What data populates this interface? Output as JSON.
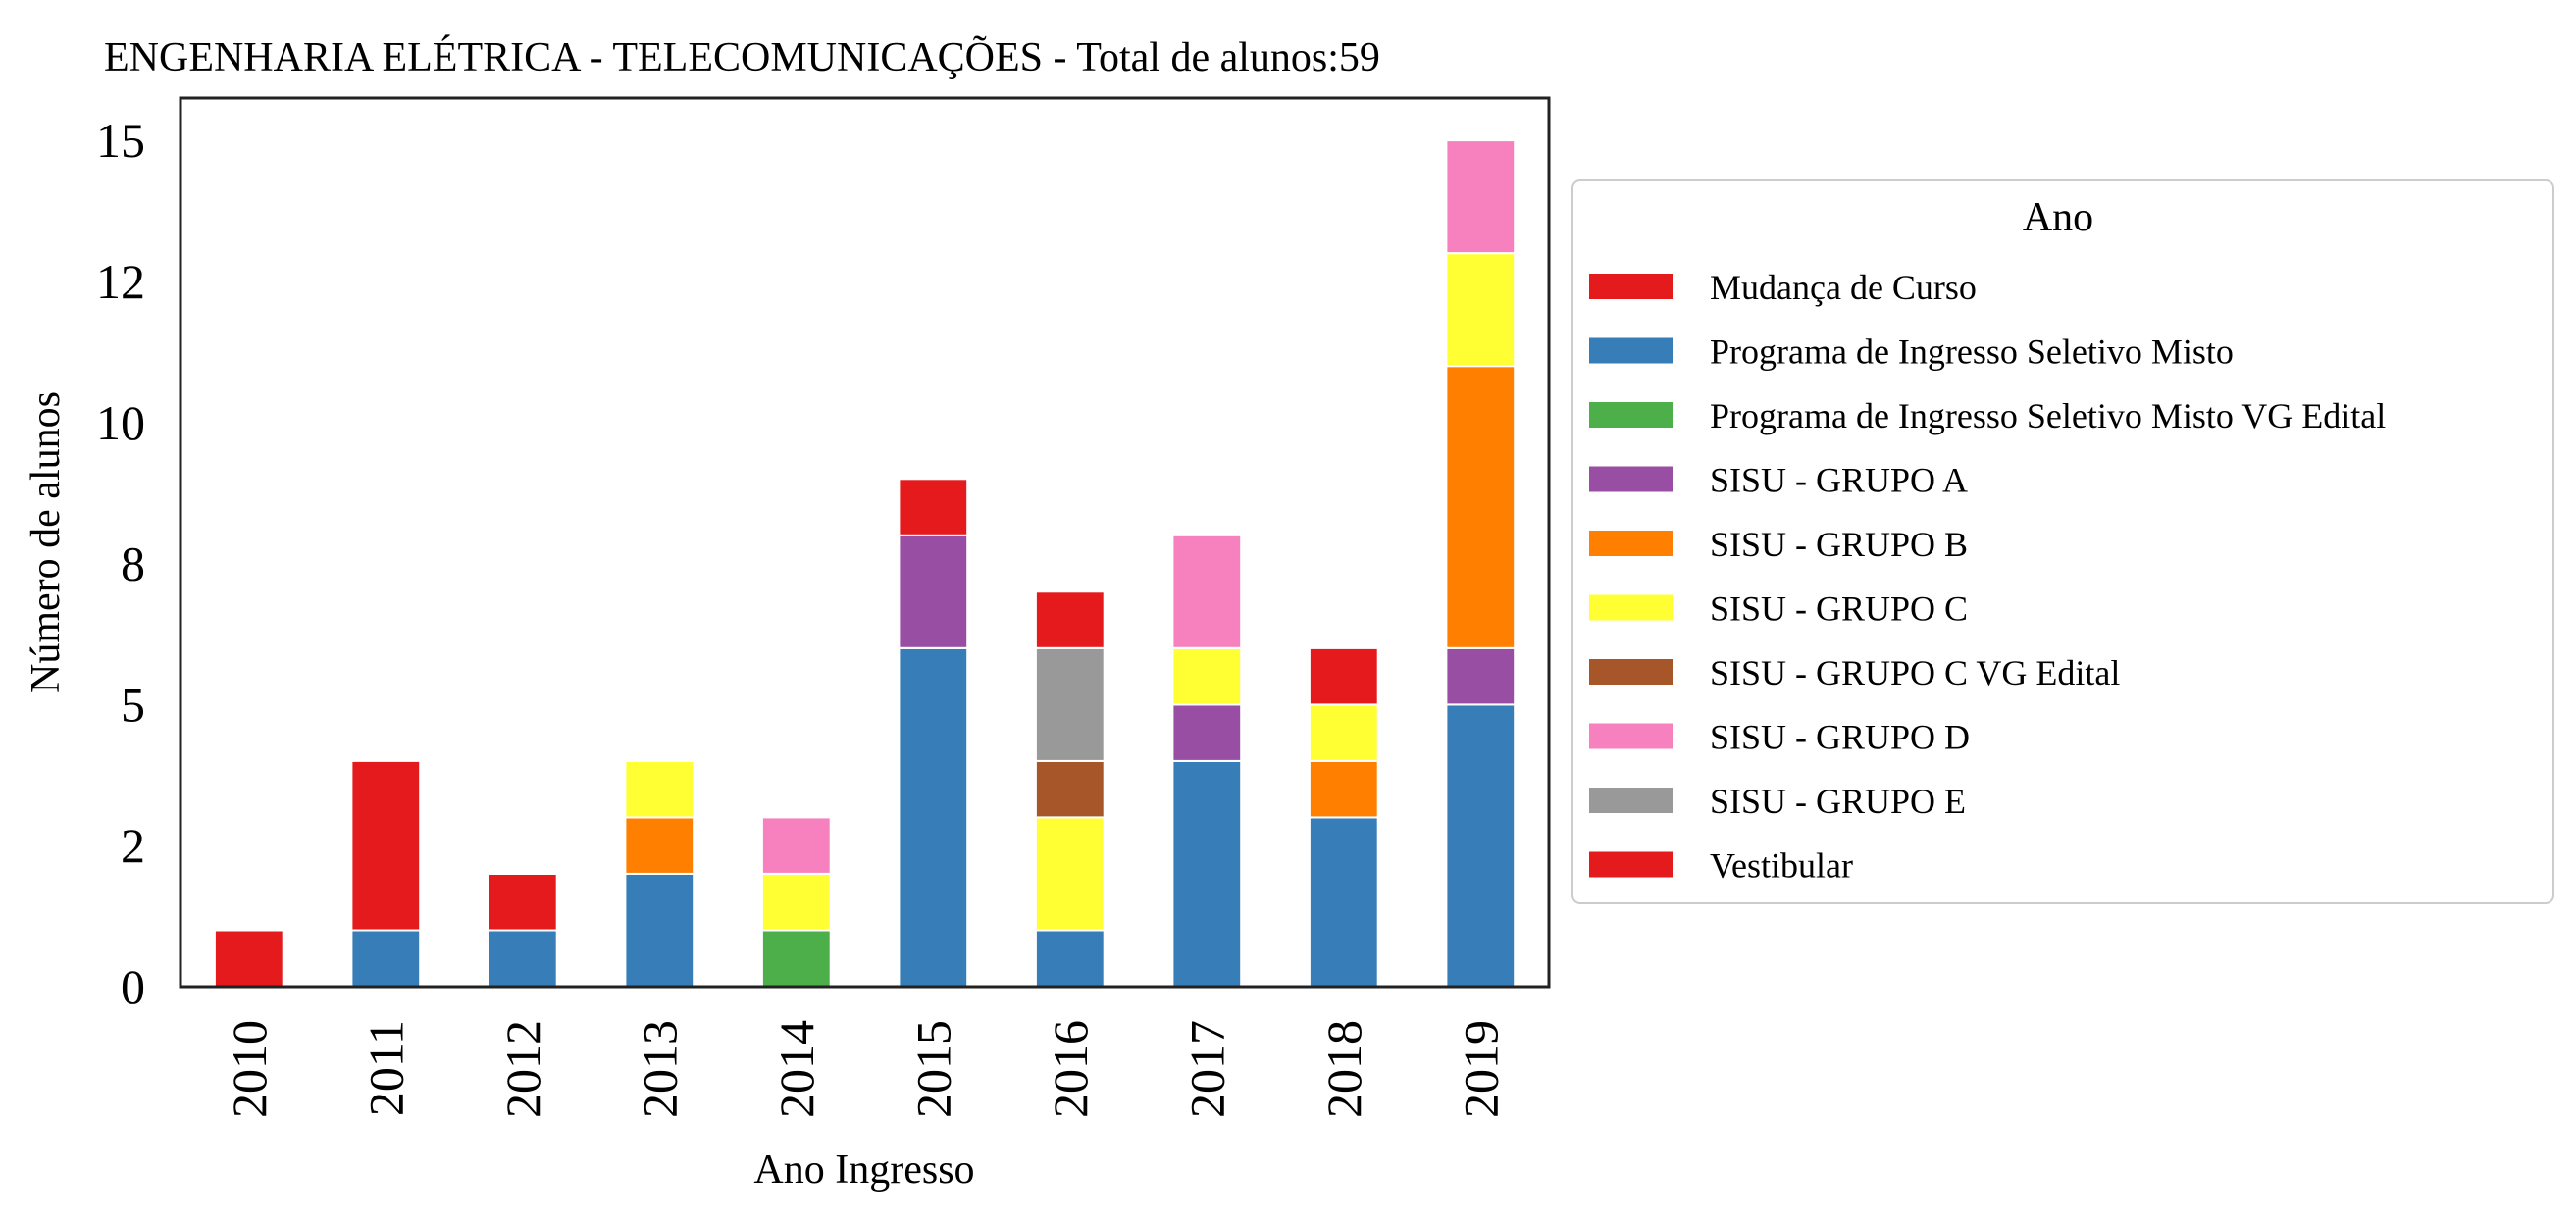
{
  "chart_data": {
    "type": "bar",
    "stacked": true,
    "title": "ENGENHARIA ELÉTRICA - TELECOMUNICAÇÕES - Total de alunos:59",
    "xlabel": "Ano Ingresso",
    "ylabel": "Número de alunos",
    "categories": [
      "2010",
      "2011",
      "2012",
      "2013",
      "2014",
      "2015",
      "2016",
      "2017",
      "2018",
      "2019"
    ],
    "ylim": [
      0,
      15.75
    ],
    "yticks": [
      0,
      2,
      5,
      8,
      10,
      12,
      15
    ],
    "ytick_values": [
      0,
      2.5,
      5,
      7.5,
      10,
      12.5,
      15
    ],
    "grid": false,
    "legend": {
      "title": "Ano",
      "placement": "right-outside"
    },
    "series": [
      {
        "name": "Mudança de Curso",
        "color": "#e41a1c",
        "values": [
          1,
          0,
          0,
          0,
          0,
          0,
          0,
          0,
          0,
          0
        ]
      },
      {
        "name": "Programa de Ingresso Seletivo Misto",
        "color": "#377eb8",
        "values": [
          0,
          1,
          1,
          2,
          0,
          6,
          1,
          4,
          3,
          5
        ]
      },
      {
        "name": "Programa de Ingresso Seletivo Misto VG Edital",
        "color": "#4daf4a",
        "values": [
          0,
          0,
          0,
          0,
          1,
          0,
          0,
          0,
          0,
          0
        ]
      },
      {
        "name": "SISU - GRUPO A",
        "color": "#984ea3",
        "values": [
          0,
          0,
          0,
          0,
          0,
          2,
          0,
          1,
          0,
          1
        ]
      },
      {
        "name": "SISU - GRUPO B",
        "color": "#ff7f00",
        "values": [
          0,
          0,
          0,
          1,
          0,
          0,
          0,
          0,
          1,
          5
        ]
      },
      {
        "name": "SISU - GRUPO C",
        "color": "#ffff33",
        "values": [
          0,
          0,
          0,
          1,
          1,
          0,
          2,
          1,
          1,
          2
        ]
      },
      {
        "name": "SISU - GRUPO C VG Edital",
        "color": "#a65628",
        "values": [
          0,
          0,
          0,
          0,
          0,
          0,
          1,
          0,
          0,
          0
        ]
      },
      {
        "name": "SISU - GRUPO D",
        "color": "#f781bf",
        "values": [
          0,
          0,
          0,
          0,
          1,
          0,
          0,
          2,
          0,
          2
        ]
      },
      {
        "name": "SISU - GRUPO E",
        "color": "#999999",
        "values": [
          0,
          0,
          0,
          0,
          0,
          0,
          2,
          0,
          0,
          0
        ]
      },
      {
        "name": "Vestibular",
        "color": "#e41a1c",
        "values": [
          0,
          3,
          1,
          0,
          0,
          1,
          1,
          0,
          1,
          0
        ]
      }
    ]
  }
}
